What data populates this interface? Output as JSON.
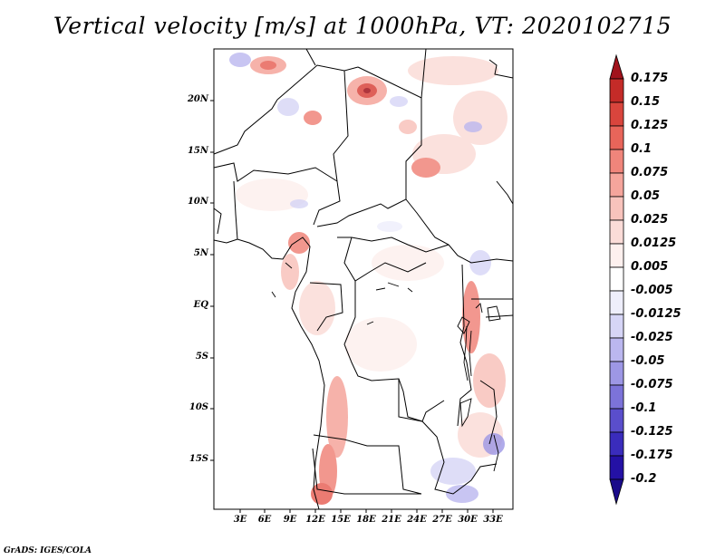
{
  "title": "Vertical velocity [m/s] at 1000hPa, VT: 2020102715",
  "footer": "GrADS: IGES/COLA",
  "map": {
    "lat_labels": [
      "20N",
      "15N",
      "10N",
      "5N",
      "EQ",
      "5S",
      "10S",
      "15S"
    ],
    "lon_labels": [
      "3E",
      "6E",
      "9E",
      "12E",
      "15E",
      "18E",
      "21E",
      "24E",
      "27E",
      "30E",
      "33E"
    ]
  },
  "colorbar": {
    "levels": [
      "0.175",
      "0.15",
      "0.125",
      "0.1",
      "0.075",
      "0.05",
      "0.025",
      "0.0125",
      "0.005",
      "-0.005",
      "-0.0125",
      "-0.025",
      "-0.05",
      "-0.075",
      "-0.1",
      "-0.125",
      "-0.175",
      "-0.2"
    ],
    "colors": [
      "#a1131c",
      "#c42b28",
      "#d9453d",
      "#e8655a",
      "#f0857b",
      "#f5a59c",
      "#f8c3bc",
      "#fbdcd8",
      "#fdf0ee",
      "#ffffff",
      "#eeeefb",
      "#d6d5f6",
      "#bbb7ef",
      "#9d97e5",
      "#7c73d9",
      "#5a4ecc",
      "#3a2cbc",
      "#2411a5",
      "#1a0b8a"
    ]
  }
}
